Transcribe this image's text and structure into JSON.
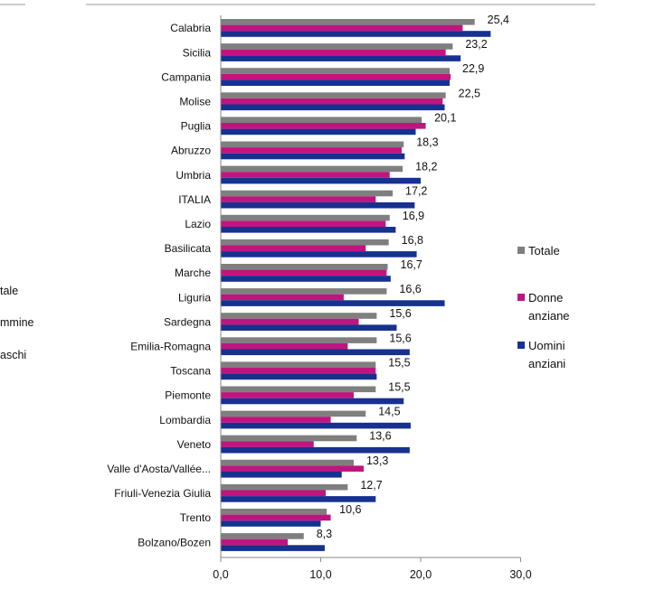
{
  "chart_data": {
    "type": "bar",
    "orientation": "horizontal",
    "categories": [
      "Calabria",
      "Sicilia",
      "Campania",
      "Molise",
      "Puglia",
      "Abruzzo",
      "Umbria",
      "ITALIA",
      "Lazio",
      "Basilicata",
      "Marche",
      "Liguria",
      "Sardegna",
      "Emilia-Romagna",
      "Toscana",
      "Piemonte",
      "Lombardia",
      "Veneto",
      "Valle d'Aosta/Vallée...",
      "Friuli-Venezia Giulia",
      "Trento",
      "Bolzano/Bozen"
    ],
    "value_labels": [
      "25,4",
      "23,2",
      "22,9",
      "22,5",
      "20,1",
      "18,3",
      "18,2",
      "17,2",
      "16,9",
      "16,8",
      "16,7",
      "16,6",
      "15,6",
      "15,6",
      "15,5",
      "15,5",
      "14,5",
      "13,6",
      "13,3",
      "12,7",
      "10,6",
      "8,3"
    ],
    "series": [
      {
        "name": "Totale",
        "color": "#7f7f7f",
        "values": [
          25.4,
          23.2,
          22.9,
          22.5,
          20.1,
          18.3,
          18.2,
          17.2,
          16.9,
          16.8,
          16.7,
          16.6,
          15.6,
          15.6,
          15.5,
          15.5,
          14.5,
          13.6,
          13.3,
          12.7,
          10.6,
          8.3
        ]
      },
      {
        "name": "Donne anziane",
        "color": "#c0157f",
        "values": [
          24.2,
          22.5,
          23.0,
          22.2,
          20.5,
          18.1,
          16.9,
          15.5,
          16.5,
          14.5,
          16.6,
          12.3,
          13.8,
          12.7,
          15.5,
          13.3,
          11.0,
          9.3,
          14.3,
          10.5,
          11.0,
          6.7
        ]
      },
      {
        "name": "Uomini anziani",
        "color": "#17318f",
        "values": [
          27.0,
          24.0,
          22.9,
          22.4,
          19.5,
          18.4,
          20.0,
          19.4,
          17.5,
          19.6,
          17.0,
          22.4,
          17.6,
          18.9,
          15.6,
          18.3,
          19.0,
          18.9,
          12.1,
          15.5,
          10.0,
          10.4
        ]
      }
    ],
    "x_ticks": [
      "0,0",
      "10,0",
      "20,0",
      "30,0"
    ],
    "xlim": [
      0,
      30
    ],
    "grid": false,
    "legend": {
      "placement": "right",
      "entries": [
        {
          "lines": [
            "Totale"
          ],
          "color": "#7f7f7f"
        },
        {
          "lines": [
            "Donne",
            "anziane"
          ],
          "color": "#c0157f"
        },
        {
          "lines": [
            "Uomini",
            "anziani"
          ],
          "color": "#17318f"
        }
      ]
    },
    "left_fragments": [
      "tale",
      "mmine",
      "aschi"
    ]
  }
}
